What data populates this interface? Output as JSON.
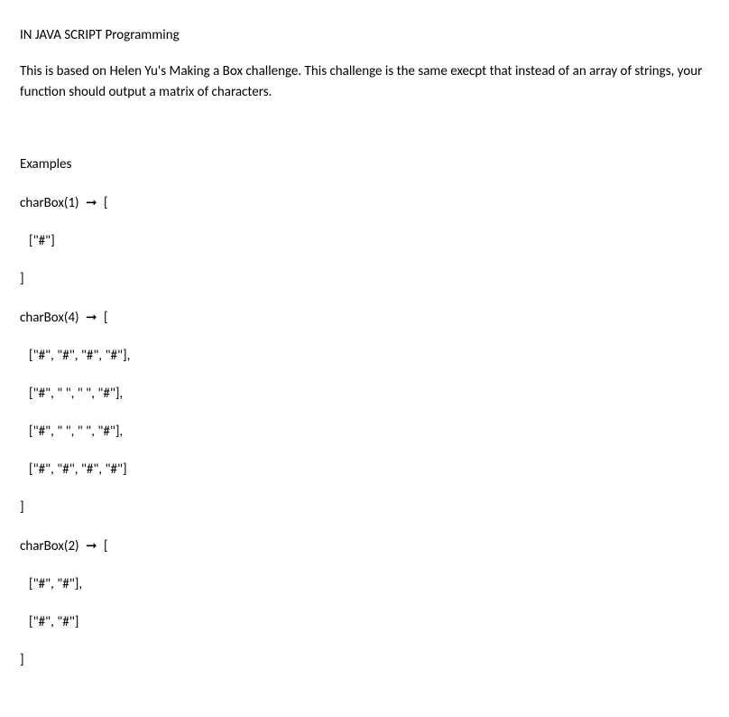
{
  "title": "IN JAVA SCRIPT Programming",
  "description": "This is based on Helen Yu's Making a Box challenge. This challenge is the same execpt that instead of an array of strings, your function should output a matrix of characters.",
  "examples_heading": "Examples",
  "text_color": "#000000",
  "background_color": "#ffffff",
  "font_size": 15,
  "arrow_glyph": "➞",
  "examples": [
    {
      "call": "charBox(1)",
      "open_bracket": "[",
      "rows": [
        "[\"#\"]"
      ],
      "close_bracket": "]"
    },
    {
      "call": "charBox(4)",
      "open_bracket": "[",
      "rows": [
        "[\"#\", \"#\", \"#\", \"#\"],",
        "[\"#\", \" \", \" \", \"#\"],",
        "[\"#\", \" \", \" \", \"#\"],",
        "[\"#\", \"#\", \"#\", \"#\"]"
      ],
      "close_bracket": "]"
    },
    {
      "call": "charBox(2)",
      "open_bracket": "[",
      "rows": [
        "[\"#\", \"#\"],",
        "[\"#\", \"#\"]"
      ],
      "close_bracket": "]"
    }
  ]
}
